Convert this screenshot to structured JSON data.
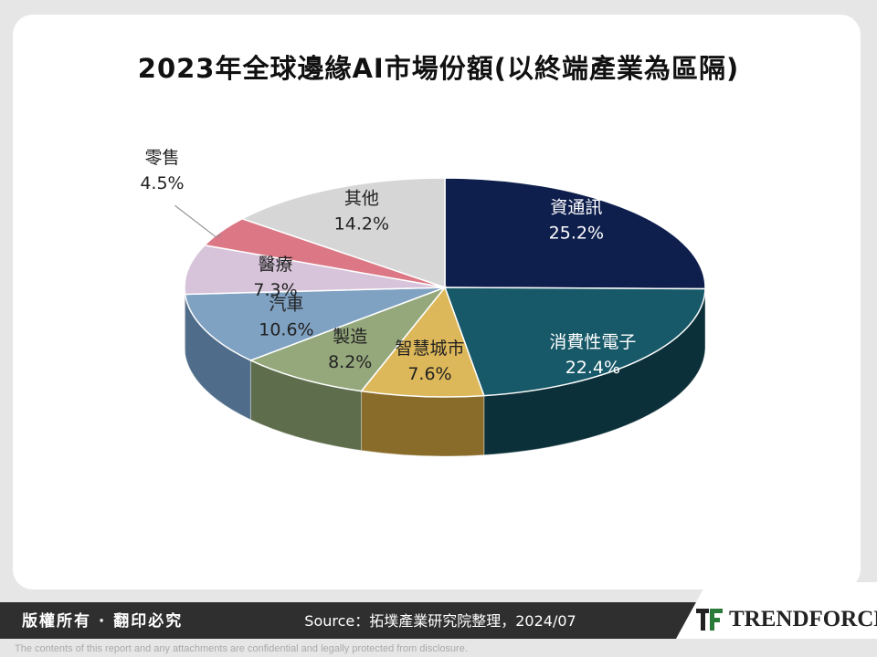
{
  "chart_data": {
    "type": "pie",
    "title": "2023年全球邊緣AI市場份額(以終端產業為區隔)",
    "slices": [
      {
        "label": "資通訊",
        "value": 25.2,
        "display": "25.2%",
        "color": "#0f1f4d",
        "side": "#08122e"
      },
      {
        "label": "消費性電子",
        "value": 22.4,
        "display": "22.4%",
        "color": "#175968",
        "side": "#0c3039"
      },
      {
        "label": "智慧城市",
        "value": 7.6,
        "display": "7.6%",
        "color": "#ddb85a",
        "side": "#8a6c2a"
      },
      {
        "label": "製造",
        "value": 8.2,
        "display": "8.2%",
        "color": "#95a87c",
        "side": "#5e6e4c"
      },
      {
        "label": "汽車",
        "value": 10.6,
        "display": "10.6%",
        "color": "#7fa1c2",
        "side": "#4f6d8a"
      },
      {
        "label": "醫療",
        "value": 7.3,
        "display": "7.3%",
        "color": "#d7c3da",
        "side": "#9a869d"
      },
      {
        "label": "零售",
        "value": 4.5,
        "display": "4.5%",
        "color": "#dc7886",
        "side": "#9a4d58"
      },
      {
        "label": "其他",
        "value": 14.2,
        "display": "14.2%",
        "color": "#d6d6d6",
        "side": "#9b9b9b"
      }
    ]
  },
  "footer": {
    "rights": "版權所有 · 翻印必究",
    "source": "Source：拓墣產業研究院整理，2024/07",
    "brand": "TRENDFORCE",
    "disclaimer": "The contents of this report and any attachments are confidential and legally protected from disclosure."
  },
  "colors": {
    "footer_bg": "#2f2f2f",
    "logo_green": "#2a7a3a"
  }
}
